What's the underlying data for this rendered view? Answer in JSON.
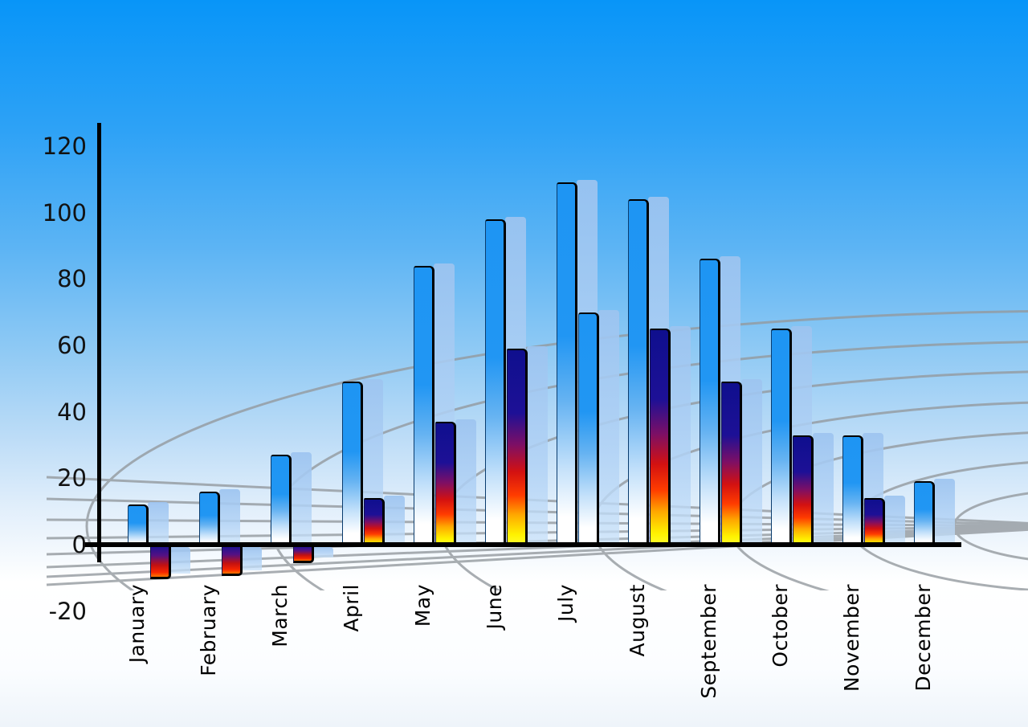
{
  "chart_data": {
    "type": "bar",
    "title": "",
    "xlabel": "",
    "ylabel": "",
    "categories": [
      "January",
      "February",
      "March",
      "April",
      "May",
      "June",
      "July",
      "August",
      "September",
      "October",
      "November",
      "December"
    ],
    "series": [
      {
        "name": "primary-blue-bars",
        "values": [
          12,
          16,
          27,
          49,
          84,
          98,
          109,
          104,
          86,
          65,
          33,
          19
        ]
      },
      {
        "name": "secondary-rainbow-bars",
        "values": [
          -10,
          -9,
          -5,
          14,
          37,
          59,
          70,
          65,
          49,
          33,
          14,
          null
        ]
      }
    ],
    "secondary_bar_styles": [
      "rainbow",
      "rainbow",
      "rainbow",
      "rainbow",
      "rainbow",
      "rainbow",
      "blue",
      "rainbow",
      "rainbow",
      "rainbow",
      "rainbow",
      "none"
    ],
    "ylim": [
      -20,
      120
    ],
    "y_tick_values": [
      120,
      100,
      80,
      60,
      40,
      20,
      0,
      -20
    ],
    "grid": "curved gray perspective floor grid behind bars",
    "legend_position": "none"
  },
  "axis": {
    "y_tick_labels": [
      "120",
      "100",
      "80",
      "60",
      "40",
      "20",
      "0",
      "-20"
    ]
  },
  "colors": {
    "sky_top": "#0895f8",
    "sky_bottom": "#eef4fa",
    "primary_bar_top": "#1e95f3",
    "primary_bar_bottom": "#ffffff",
    "secondary_bar_navy": "#0f0f8e",
    "secondary_bar_red": "#d31111",
    "secondary_bar_yellow": "#fff200",
    "shadow_bar": "#a5c8ef",
    "grid_line": "#949a9f",
    "axis_line": "#000000",
    "label_text": "#000000"
  }
}
